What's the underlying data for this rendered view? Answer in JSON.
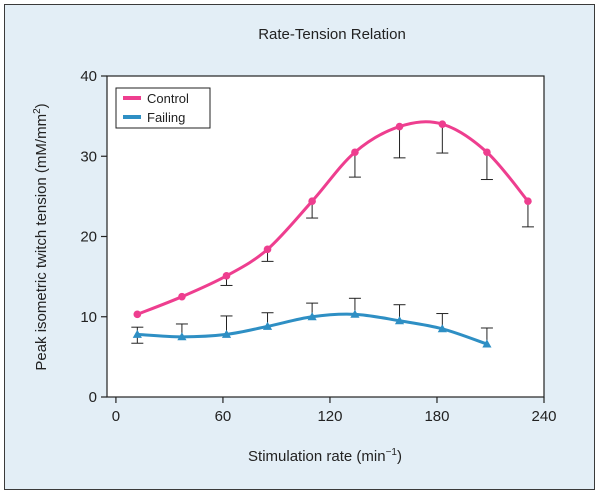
{
  "chart_data": {
    "type": "line",
    "title": "Rate-Tension Relation",
    "xlabel": "Stimulation rate (min",
    "xlabel_sup": "−1",
    "xlabel_tail": ")",
    "ylabel": "Peak isometric twitch tension (mM/mm",
    "ylabel_sup": "2",
    "ylabel_tail": ")",
    "xlim": [
      -5,
      240
    ],
    "ylim": [
      0,
      40
    ],
    "xticks": [
      0,
      60,
      120,
      180,
      240
    ],
    "yticks": [
      0,
      10,
      20,
      30,
      40
    ],
    "grid": false,
    "legend_position": "top-left",
    "series": [
      {
        "name": "Control",
        "color": "#ee3e8f",
        "marker": "circle",
        "x": [
          12,
          37,
          62,
          85,
          110,
          134,
          159,
          183,
          208,
          231
        ],
        "y": [
          10.3,
          12.5,
          15.1,
          18.4,
          24.4,
          30.5,
          33.7,
          34.0,
          30.5,
          24.4
        ],
        "error_lower": [
          0,
          0,
          1.2,
          1.5,
          2.1,
          3.1,
          3.9,
          3.6,
          3.4,
          3.2
        ],
        "error_upper": [
          0,
          0,
          0,
          0,
          0,
          0,
          0,
          0,
          0,
          0
        ]
      },
      {
        "name": "Failing",
        "color": "#2e8fc4",
        "marker": "triangle",
        "x": [
          12,
          37,
          62,
          85,
          110,
          134,
          159,
          183,
          208
        ],
        "y": [
          7.8,
          7.5,
          7.8,
          8.8,
          10.0,
          10.3,
          9.5,
          8.5,
          6.6
        ],
        "error_lower": [
          1.1,
          0,
          0,
          0,
          0,
          0,
          0,
          0,
          0
        ],
        "error_upper": [
          0.9,
          1.6,
          2.3,
          1.7,
          1.7,
          2.0,
          2.0,
          1.9,
          2.0
        ]
      }
    ]
  }
}
